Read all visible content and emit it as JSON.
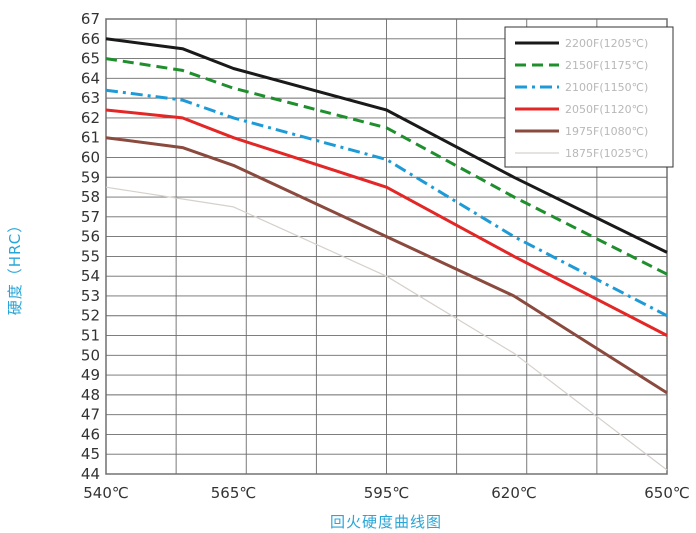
{
  "chart_data": {
    "type": "line",
    "xlabel": "回火硬度曲线图",
    "ylabel": "硬度（HRC）",
    "x": [
      540,
      555,
      565,
      595,
      620,
      650
    ],
    "x_tick_values": [
      540,
      565,
      595,
      620,
      650
    ],
    "x_tick_labels": [
      "540℃",
      "565℃",
      "595℃",
      "620℃",
      "650℃"
    ],
    "xlim": [
      540,
      650
    ],
    "ylim": [
      44,
      67
    ],
    "y_tick_step": 1,
    "grid": true,
    "legend_position": "top-right",
    "series": [
      {
        "name": "2200F(1205℃)",
        "color": "#1a1a1a",
        "dash": "solid",
        "values": [
          66,
          65.5,
          64.5,
          62.4,
          59,
          55.2
        ]
      },
      {
        "name": "2150F(1175℃)",
        "color": "#1f8f2e",
        "dash": "dashed",
        "values": [
          65,
          64.4,
          63.5,
          61.5,
          58,
          54.1
        ]
      },
      {
        "name": "2100F(1150℃)",
        "color": "#1e9bd7",
        "dash": "dashdot",
        "values": [
          63.4,
          62.9,
          62,
          59.9,
          56,
          52
        ]
      },
      {
        "name": "2050F(1120℃)",
        "color": "#e32626",
        "dash": "solid",
        "values": [
          62.4,
          62,
          61,
          58.5,
          55,
          51
        ]
      },
      {
        "name": "1975F(1080℃)",
        "color": "#8a4a3e",
        "dash": "solid",
        "values": [
          61,
          60.5,
          59.6,
          56,
          53,
          48.1
        ]
      },
      {
        "name": "1875F(1025℃)",
        "color": "#d6d0cc",
        "dash": "solid",
        "values": [
          58.5,
          57.9,
          57.5,
          54,
          50.1,
          44.2
        ]
      }
    ]
  }
}
